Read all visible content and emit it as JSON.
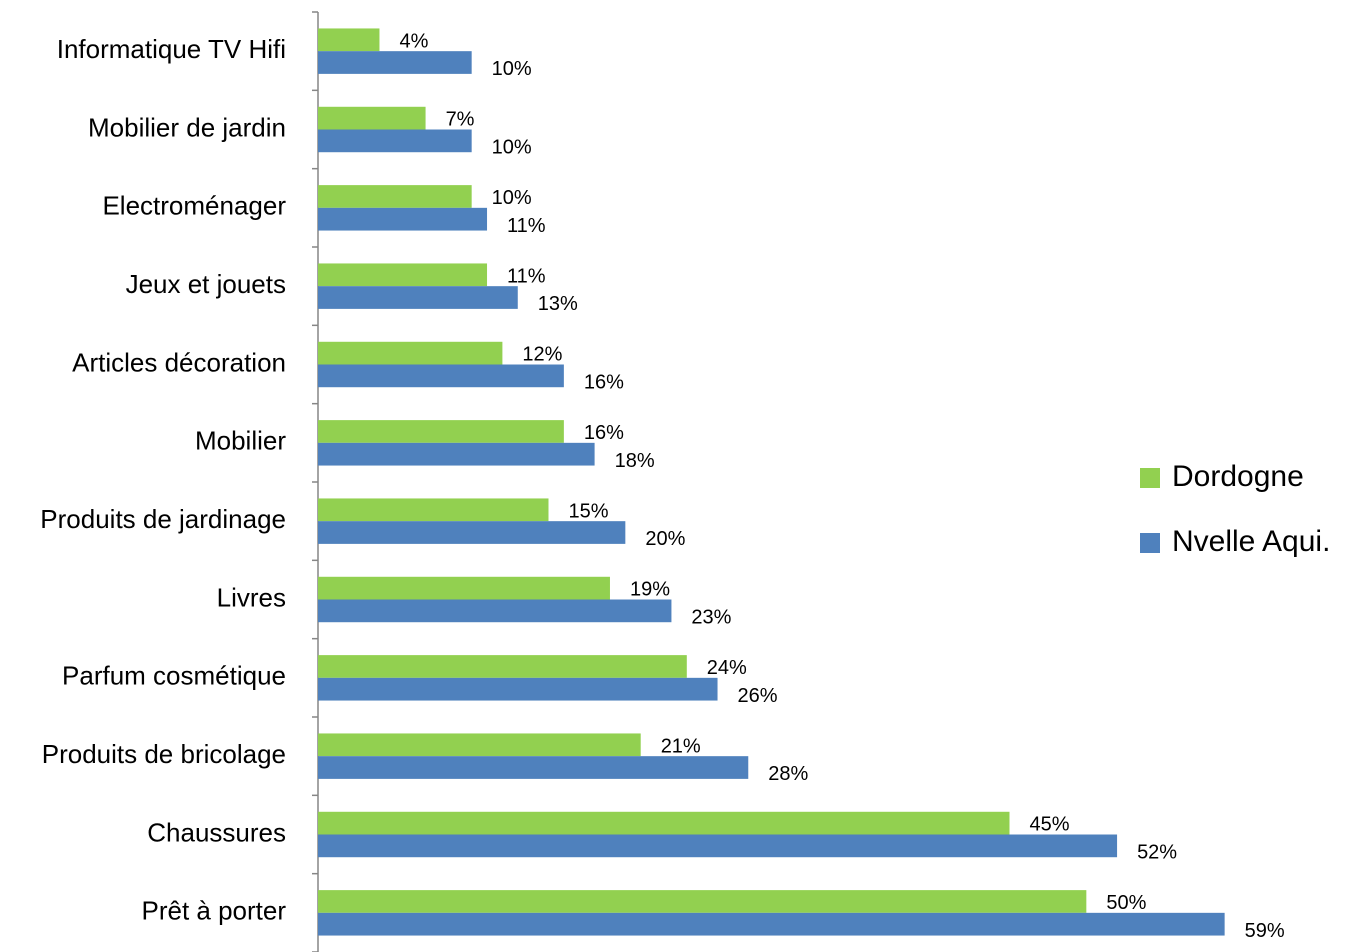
{
  "chart_data": {
    "type": "hbar",
    "categories": [
      "Informatique TV Hifi",
      "Mobilier de jardin",
      "Electroménager",
      "Jeux et jouets",
      "Articles décoration",
      "Mobilier",
      "Produits de jardinage",
      "Livres",
      "Parfum cosmétique",
      "Produits de bricolage",
      "Chaussures",
      "Prêt à porter"
    ],
    "series": [
      {
        "name": "Dordogne",
        "color": "#92d050",
        "values": [
          4,
          7,
          10,
          11,
          12,
          16,
          15,
          19,
          24,
          21,
          45,
          50
        ],
        "value_labels": [
          "4%",
          "7%",
          "10%",
          "11%",
          "12%",
          "16%",
          "15%",
          "19%",
          "24%",
          "21%",
          "45%",
          "50%"
        ]
      },
      {
        "name": "Nvelle Aqui.",
        "color": "#4f81bd",
        "values": [
          10,
          10,
          11,
          13,
          16,
          18,
          20,
          23,
          26,
          28,
          52,
          59
        ],
        "value_labels": [
          "10%",
          "10%",
          "11%",
          "13%",
          "16%",
          "18%",
          "20%",
          "23%",
          "26%",
          "28%",
          "52%",
          "59%"
        ]
      }
    ],
    "xlim": [
      0,
      60
    ],
    "legend": "right"
  }
}
